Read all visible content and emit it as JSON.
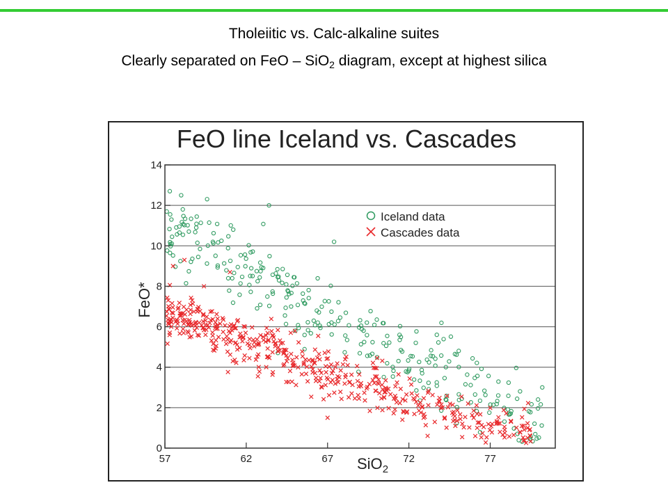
{
  "header": {
    "title": "Tholeiitic vs. Calc-alkaline suites",
    "subtitle_pre": "Clearly separated on FeO – SiO",
    "subtitle_sub": "2",
    "subtitle_post": " diagram, except at highest silica"
  },
  "colors": {
    "accent_rule": "#33cc33",
    "iceland": "#2e9a5f",
    "cascades": "#e8282b",
    "grid": "#555555"
  },
  "chart_data": {
    "type": "scatter",
    "title": "FeO line Iceland vs. Cascades",
    "xlabel_main": "SiO",
    "xlabel_sub": "2",
    "ylabel": "FeO*",
    "xlim": [
      57,
      81
    ],
    "ylim": [
      0,
      14
    ],
    "xticks": [
      57,
      62,
      67,
      72,
      77
    ],
    "yticks": [
      0,
      2,
      4,
      6,
      8,
      10,
      12,
      14
    ],
    "grid": "horizontal",
    "legend_placement": "top-right",
    "legend": [
      "Iceland data",
      "Cascades data"
    ],
    "series": [
      {
        "name": "Iceland data",
        "marker": "circle",
        "trend": [
          [
            57,
            10.8
          ],
          [
            60,
            9.6
          ],
          [
            63,
            8.4
          ],
          [
            66,
            6.9
          ],
          [
            69,
            5.5
          ],
          [
            72,
            4.4
          ],
          [
            75,
            3.3
          ],
          [
            78,
            2.2
          ],
          [
            80,
            1.4
          ]
        ],
        "x_range": [
          57.1,
          80.2
        ],
        "scatter_sd": 1.0,
        "outliers": [
          [
            57.3,
            12.7
          ],
          [
            58.0,
            12.5
          ],
          [
            58.1,
            11.8
          ],
          [
            63.4,
            12.0
          ],
          [
            61.2,
            10.8
          ],
          [
            67.4,
            10.2
          ],
          [
            80.2,
            3.0
          ],
          [
            57.4,
            11.3
          ]
        ],
        "approx_count": 300
      },
      {
        "name": "Cascades data",
        "marker": "cross",
        "trend": [
          [
            57,
            6.6
          ],
          [
            59,
            6.2
          ],
          [
            61,
            5.7
          ],
          [
            63,
            5.0
          ],
          [
            65,
            4.4
          ],
          [
            67,
            3.7
          ],
          [
            69,
            3.2
          ],
          [
            71,
            2.6
          ],
          [
            73,
            2.1
          ],
          [
            75,
            1.6
          ],
          [
            77,
            1.2
          ],
          [
            79,
            0.9
          ]
        ],
        "x_range": [
          57.1,
          79.5
        ],
        "scatter_sd": 0.6,
        "outliers": [
          [
            57.5,
            9.0
          ],
          [
            58.2,
            9.3
          ],
          [
            59.4,
            8.0
          ],
          [
            61.0,
            8.7
          ],
          [
            67.0,
            1.5
          ],
          [
            71.6,
            1.4
          ],
          [
            76.2,
            1.0
          ],
          [
            79.1,
            0.4
          ],
          [
            77.6,
            0.8
          ]
        ],
        "approx_count": 500
      }
    ]
  }
}
